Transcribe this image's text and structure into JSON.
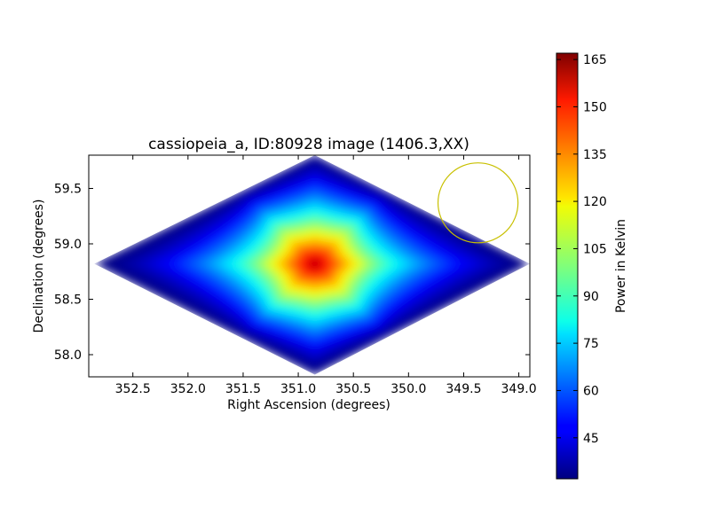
{
  "chart_data": {
    "type": "heatmap",
    "title": "cassiopeia_a, ID:80928 image (1406.3,XX)",
    "xlabel": "Right Ascension (degrees)",
    "ylabel": "Declination (degrees)",
    "x_inverted": true,
    "xlim": [
      352.9,
      348.9
    ],
    "ylim": [
      57.8,
      59.8
    ],
    "x_ticks": [
      352.5,
      352.0,
      351.5,
      351.0,
      350.5,
      350.0,
      349.5,
      349.0
    ],
    "x_tick_labels": [
      "352.5",
      "352.0",
      "351.5",
      "351.0",
      "350.5",
      "350.0",
      "349.5",
      "349.0"
    ],
    "y_ticks": [
      58.0,
      58.5,
      59.0,
      59.5
    ],
    "y_tick_labels": [
      "58.0",
      "58.5",
      "59.0",
      "59.5"
    ],
    "colormap": "jet",
    "grid": false,
    "footprint_diamond": {
      "left": [
        352.85,
        58.82
      ],
      "top": [
        350.85,
        59.8
      ],
      "right": [
        348.9,
        58.82
      ],
      "bottom": [
        350.85,
        57.82
      ]
    },
    "peak": {
      "x": 350.85,
      "y": 58.82,
      "value": 167
    },
    "background_value": 33,
    "annotation_circle": {
      "center": [
        349.37,
        59.37
      ],
      "radius_deg": 0.37,
      "color": "#c8c000"
    },
    "colorbar": {
      "label": "Power in Kelvin",
      "min": 32,
      "max": 167,
      "ticks": [
        45,
        60,
        75,
        90,
        105,
        120,
        135,
        150,
        165
      ],
      "tick_labels": [
        "45",
        "60",
        "75",
        "90",
        "105",
        "120",
        "135",
        "150",
        "165"
      ]
    }
  }
}
